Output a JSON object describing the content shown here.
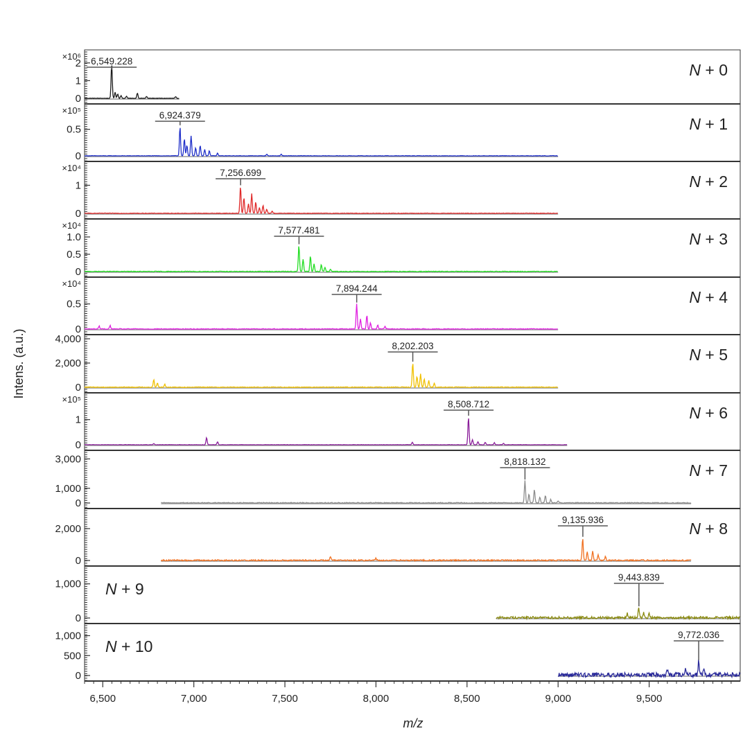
{
  "chart_data": {
    "type": "line",
    "title": "",
    "xlabel": "m/z",
    "ylabel": "Intens. (a.u.)",
    "xlim": [
      6400,
      10000
    ],
    "xticks": [
      6500,
      7000,
      7500,
      8000,
      8500,
      9000,
      9500
    ],
    "xtick_labels": [
      "6,500",
      "7,000",
      "7,500",
      "8,000",
      "8,500",
      "9,000",
      "9,500"
    ],
    "grid": false,
    "legend": "none",
    "panels": [
      {
        "label": "N + 0",
        "color": "#1a1a1a",
        "x_range": [
          6400,
          6920
        ],
        "peak_mz": 6549.228,
        "peak_label": "6,549.228",
        "ylim": [
          0,
          2.5
        ],
        "yticks": [
          0,
          1,
          2
        ],
        "ytick_labels": [
          "0",
          "1",
          "2"
        ],
        "y_exponent": "×10⁶",
        "peaks": [
          [
            6549,
            1.95
          ],
          [
            6568,
            0.35
          ],
          [
            6582,
            0.25
          ],
          [
            6600,
            0.15
          ],
          [
            6630,
            0.12
          ],
          [
            6690,
            0.3
          ],
          [
            6740,
            0.1
          ],
          [
            6900,
            0.08
          ]
        ],
        "noise": 0.03
      },
      {
        "label": "N + 1",
        "color": "#1f2fc9",
        "x_range": [
          6400,
          9000
        ],
        "peak_mz": 6924.379,
        "peak_label": "6,924.379",
        "ylim": [
          0,
          0.9
        ],
        "yticks": [
          0,
          0.5
        ],
        "ytick_labels": [
          "0",
          "0.5"
        ],
        "y_exponent": "×10⁵",
        "peaks": [
          [
            6924,
            0.55
          ],
          [
            6948,
            0.32
          ],
          [
            6962,
            0.2
          ],
          [
            6985,
            0.38
          ],
          [
            7010,
            0.15
          ],
          [
            7035,
            0.2
          ],
          [
            7060,
            0.12
          ],
          [
            7085,
            0.1
          ],
          [
            7130,
            0.05
          ],
          [
            7400,
            0.03
          ],
          [
            7480,
            0.03
          ]
        ],
        "noise": 0.008
      },
      {
        "label": "N + 2",
        "color": "#e02a2a",
        "x_range": [
          6400,
          9000
        ],
        "peak_mz": 7256.699,
        "peak_label": "7,256.699",
        "ylim": [
          0,
          1.7
        ],
        "yticks": [
          0,
          1
        ],
        "ytick_labels": [
          "0",
          "1"
        ],
        "y_exponent": "×10⁴",
        "peaks": [
          [
            7256,
            0.95
          ],
          [
            7275,
            0.55
          ],
          [
            7300,
            0.35
          ],
          [
            7318,
            0.7
          ],
          [
            7340,
            0.4
          ],
          [
            7360,
            0.2
          ],
          [
            7380,
            0.28
          ],
          [
            7400,
            0.15
          ],
          [
            7430,
            0.08
          ]
        ],
        "noise": 0.02
      },
      {
        "label": "N + 3",
        "color": "#22dd22",
        "x_range": [
          6400,
          9000
        ],
        "peak_mz": 7577.481,
        "peak_label": "7,577.481",
        "ylim": [
          0,
          1.4
        ],
        "yticks": [
          0,
          0.5,
          1.0
        ],
        "ytick_labels": [
          "0",
          "0.5",
          "1.0"
        ],
        "y_exponent": "×10⁴",
        "peaks": [
          [
            7577,
            0.75
          ],
          [
            7600,
            0.35
          ],
          [
            7640,
            0.45
          ],
          [
            7660,
            0.22
          ],
          [
            7700,
            0.2
          ],
          [
            7720,
            0.12
          ],
          [
            7750,
            0.06
          ]
        ],
        "noise": 0.02
      },
      {
        "label": "N + 4",
        "color": "#e020e0",
        "x_range": [
          6400,
          9000
        ],
        "peak_mz": 7894.244,
        "peak_label": "7,894.244",
        "ylim": [
          0,
          0.95
        ],
        "yticks": [
          0,
          0.5
        ],
        "ytick_labels": [
          "0",
          "0.5"
        ],
        "y_exponent": "×10⁴",
        "peaks": [
          [
            7894,
            0.5
          ],
          [
            7915,
            0.2
          ],
          [
            7950,
            0.28
          ],
          [
            7970,
            0.12
          ],
          [
            8010,
            0.08
          ],
          [
            8050,
            0.05
          ],
          [
            6480,
            0.06
          ],
          [
            6540,
            0.07
          ]
        ],
        "noise": 0.015
      },
      {
        "label": "N + 5",
        "color": "#f0c000",
        "x_range": [
          6400,
          9000
        ],
        "peak_mz": 8202.203,
        "peak_label": "8,202.203",
        "ylim": [
          0,
          4000
        ],
        "yticks": [
          0,
          2000,
          4000
        ],
        "ytick_labels": [
          "0",
          "2,000",
          "4,000"
        ],
        "y_exponent": "",
        "peaks": [
          [
            8202,
            2000
          ],
          [
            8225,
            900
          ],
          [
            8245,
            1100
          ],
          [
            8265,
            700
          ],
          [
            8290,
            550
          ],
          [
            8320,
            350
          ],
          [
            6780,
            650
          ],
          [
            6800,
            350
          ],
          [
            6840,
            250
          ]
        ],
        "noise": 60
      },
      {
        "label": "N + 6",
        "color": "#8a1e9a",
        "x_range": [
          6400,
          9050
        ],
        "peak_mz": 8508.712,
        "peak_label": "8,508.712",
        "ylim": [
          0,
          1.9
        ],
        "yticks": [
          0,
          1
        ],
        "ytick_labels": [
          "0",
          "1"
        ],
        "y_exponent": "×10⁵",
        "peaks": [
          [
            8508,
            1.1
          ],
          [
            8530,
            0.2
          ],
          [
            8560,
            0.12
          ],
          [
            8600,
            0.1
          ],
          [
            8650,
            0.08
          ],
          [
            8700,
            0.06
          ],
          [
            7070,
            0.28
          ],
          [
            7130,
            0.12
          ],
          [
            8200,
            0.1
          ],
          [
            6780,
            0.05
          ]
        ],
        "noise": 0.012
      },
      {
        "label": "N + 7",
        "color": "#8c8c8c",
        "x_range": [
          6820,
          9730
        ],
        "peak_mz": 8818.132,
        "peak_label": "8,818.132",
        "ylim": [
          0,
          3300
        ],
        "yticks": [
          0,
          1000,
          3000
        ],
        "ytick_labels": [
          "0",
          "1,000",
          "3,000"
        ],
        "y_exponent": "",
        "peaks": [
          [
            8818,
            1500
          ],
          [
            8840,
            600
          ],
          [
            8870,
            900
          ],
          [
            8900,
            400
          ],
          [
            8930,
            500
          ],
          [
            8960,
            250
          ],
          [
            9000,
            150
          ]
        ],
        "noise": 60
      },
      {
        "label": "N + 8",
        "color": "#f07020",
        "x_range": [
          6820,
          9730
        ],
        "peak_mz": 9135.936,
        "peak_label": "9,135.936",
        "ylim": [
          0,
          3000
        ],
        "yticks": [
          0,
          2000
        ],
        "ytick_labels": [
          "0",
          "2,000"
        ],
        "y_exponent": "",
        "peaks": [
          [
            9135,
            1400
          ],
          [
            9160,
            500
          ],
          [
            9190,
            600
          ],
          [
            9220,
            350
          ],
          [
            9260,
            250
          ],
          [
            7750,
            250
          ],
          [
            8000,
            150
          ]
        ],
        "noise": 80
      },
      {
        "label": "N + 9",
        "color": "#8a8a10",
        "x_range": [
          8660,
          10000
        ],
        "peak_mz": 9443.839,
        "peak_label": "9,443.839",
        "ylim": [
          0,
          1400
        ],
        "yticks": [
          0,
          1000
        ],
        "ytick_labels": [
          "0",
          "1,000"
        ],
        "y_exponent": "",
        "peaks": [
          [
            9443,
            300
          ],
          [
            9470,
            150
          ],
          [
            9500,
            120
          ],
          [
            9380,
            120
          ]
        ],
        "noise": 70
      },
      {
        "label": "N + 10",
        "color": "#2a2a9a",
        "x_range": [
          9000,
          10000
        ],
        "peak_mz": 9772.036,
        "peak_label": "9,772.036",
        "ylim": [
          0,
          1200
        ],
        "yticks": [
          0,
          500,
          1000
        ],
        "ytick_labels": [
          "0",
          "500",
          "1,000"
        ],
        "y_exponent": "",
        "peaks": [
          [
            9772,
            350
          ],
          [
            9800,
            200
          ],
          [
            9700,
            150
          ],
          [
            9600,
            150
          ]
        ],
        "noise": 110
      }
    ]
  }
}
